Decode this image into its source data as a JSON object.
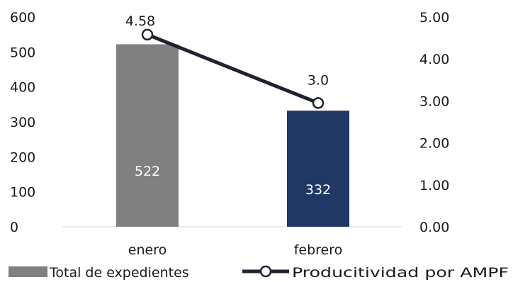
{
  "chart_data": {
    "type": "bar",
    "categories": [
      "enero",
      "febrero"
    ],
    "series": [
      {
        "name": "Total de expedientes",
        "kind": "bar",
        "axis": "left",
        "values": [
          522,
          332
        ],
        "point_colors": [
          "#808080",
          "#203864"
        ],
        "data_labels": [
          "522",
          "332"
        ],
        "label_color": "#ffffff"
      },
      {
        "name": "Producitividad por AMPF",
        "kind": "line",
        "axis": "right",
        "values": [
          4.58,
          2.95
        ],
        "data_labels": [
          "4.58",
          "3.0"
        ],
        "color": "#1f2330",
        "label_color": "#1a1a1a"
      }
    ],
    "y_left": {
      "lim": [
        0,
        600
      ],
      "ticks": [
        0,
        100,
        200,
        300,
        400,
        500,
        600
      ],
      "tick_labels": [
        "0",
        "100",
        "200",
        "300",
        "400",
        "500",
        "600"
      ]
    },
    "y_right": {
      "lim": [
        0,
        5
      ],
      "ticks": [
        0,
        1,
        2,
        3,
        4,
        5
      ],
      "tick_labels": [
        "0.00",
        "1.00",
        "2.00",
        "3.00",
        "4.00",
        "5.00"
      ]
    },
    "grid": false,
    "legend": "bottom",
    "axis_line_color": "#d9d9d9"
  }
}
